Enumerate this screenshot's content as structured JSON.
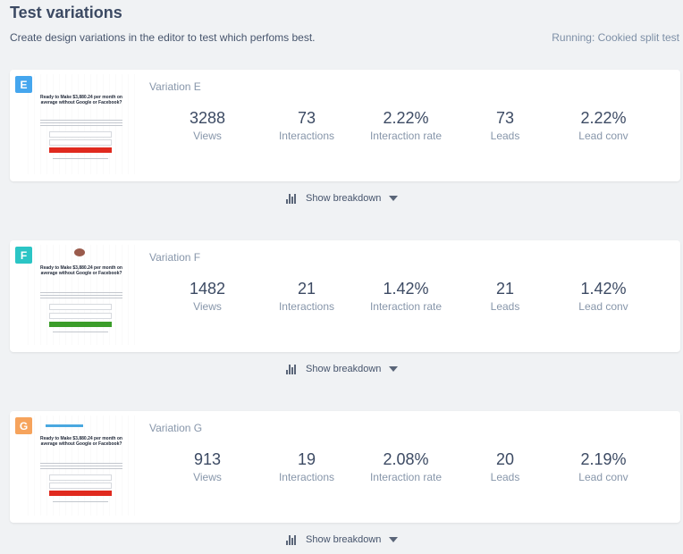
{
  "header": {
    "title": "Test variations",
    "subtitle": "Create design variations in the editor to test which perfoms best.",
    "running": "Running: Cookied split test"
  },
  "breakdown_label": "Show breakdown",
  "thumbnail_headline": "Ready to Make $3,880.24 per month on average without Google or Facebook?",
  "variations": [
    {
      "letter": "E",
      "badge_color": "#45a6ee",
      "cta_color": "#e02a1f",
      "name": "Variation E",
      "views": "3288",
      "interactions": "73",
      "interaction_rate": "2.22%",
      "leads": "73",
      "lead_conv": "2.22%"
    },
    {
      "letter": "F",
      "badge_color": "#2bc5c5",
      "cta_color": "#3b9d2a",
      "name": "Variation F",
      "views": "1482",
      "interactions": "21",
      "interaction_rate": "1.42%",
      "leads": "21",
      "lead_conv": "1.42%"
    },
    {
      "letter": "G",
      "badge_color": "#f6a35c",
      "cta_color": "#e02a1f",
      "name": "Variation G",
      "views": "913",
      "interactions": "19",
      "interaction_rate": "2.08%",
      "leads": "20",
      "lead_conv": "2.19%"
    }
  ],
  "stat_labels": {
    "views": "Views",
    "interactions": "Interactions",
    "interaction_rate": "Interaction rate",
    "leads": "Leads",
    "lead_conv": "Lead conv"
  },
  "icons": {
    "breakdown": "bar-chart-icon",
    "dropdown": "caret-down-icon"
  }
}
